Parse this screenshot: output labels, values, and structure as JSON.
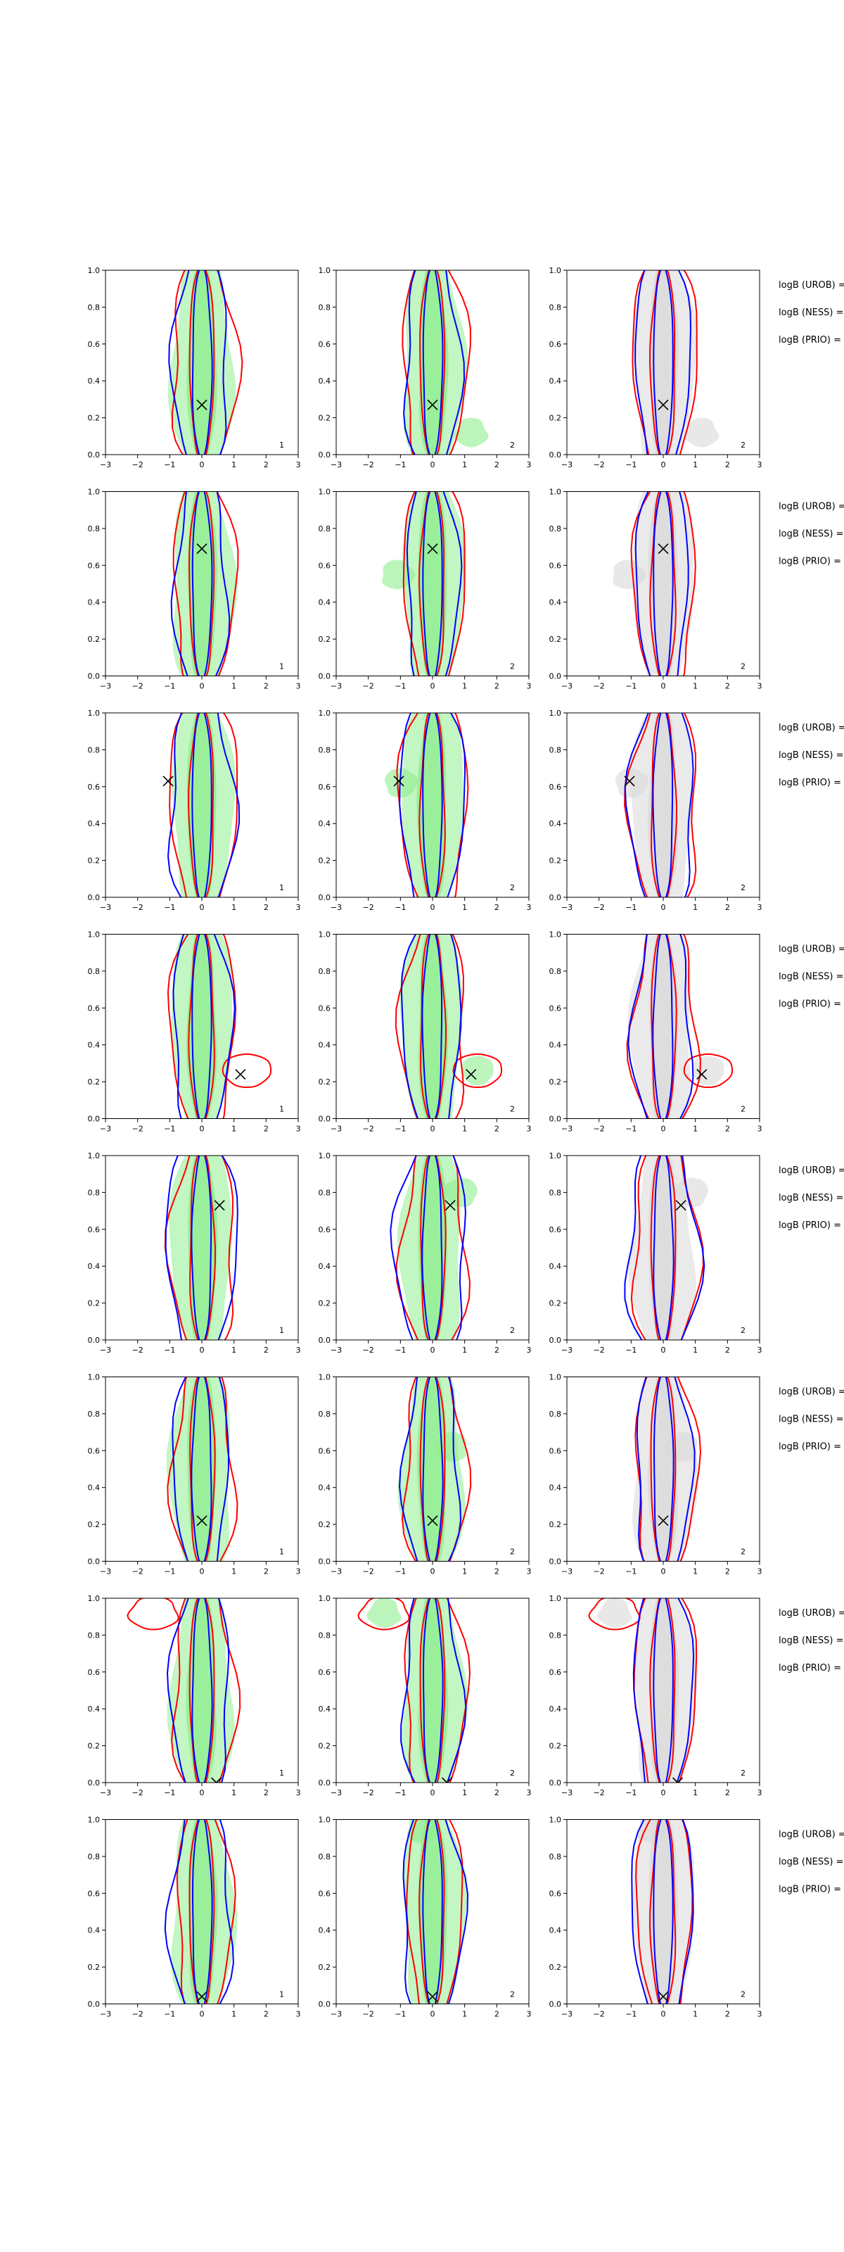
{
  "colors": {
    "fill_green": "#90ee90",
    "fill_gray": "#d9d9d9",
    "contour_red": "#ff0000",
    "contour_blue": "#0000ff",
    "marker": "#000000"
  },
  "chart_data": {
    "type": "contour-grid",
    "layout": {
      "rows": 8,
      "cols": 3
    },
    "xlim": [
      -3,
      3
    ],
    "ylim": [
      0.0,
      1.0
    ],
    "x_ticks": [
      "−3",
      "−2",
      "−1",
      "0",
      "1",
      "2",
      "3"
    ],
    "y_ticks": [
      "0.0",
      "0.2",
      "0.4",
      "0.6",
      "0.8",
      "1.0"
    ],
    "column_fill": [
      "green",
      "green",
      "gray"
    ],
    "panel_labels": [
      "1",
      "2",
      "2"
    ],
    "side_labels": [
      "logB (UROB) =",
      "logB (NESS) =",
      "logB (PRIO) ="
    ],
    "rows": [
      {
        "marker": [
          0.0,
          0.27
        ],
        "wide_red": 1.0,
        "wide_blue": 0.85,
        "extra_blob": [
          1.2,
          0.12
        ]
      },
      {
        "marker": [
          0.0,
          0.69
        ],
        "wide_red": 0.95,
        "wide_blue": 0.8,
        "extra_blob": [
          -1.1,
          0.55
        ]
      },
      {
        "marker": [
          -1.05,
          0.63
        ],
        "wide_red": 1.05,
        "wide_blue": 1.0,
        "extra_blob": [
          -1.0,
          0.62
        ]
      },
      {
        "marker": [
          1.2,
          0.24
        ],
        "wide_red": 1.0,
        "wide_blue": 0.9,
        "extra_blob": [
          1.4,
          0.26
        ]
      },
      {
        "marker": [
          0.55,
          0.73
        ],
        "wide_red": 1.0,
        "wide_blue": 1.1,
        "extra_blob": [
          0.9,
          0.8
        ]
      },
      {
        "marker": [
          0.0,
          0.22
        ],
        "wide_red": 0.95,
        "wide_blue": 0.85,
        "extra_blob": [
          0.6,
          0.62
        ]
      },
      {
        "marker": [
          0.45,
          0.0
        ],
        "wide_red": 0.95,
        "wide_blue": 0.9,
        "extra_blob": [
          -1.5,
          0.92
        ]
      },
      {
        "marker": [
          0.0,
          0.04
        ],
        "wide_red": 0.85,
        "wide_blue": 0.95,
        "extra_blob": [
          -0.3,
          0.95
        ]
      }
    ]
  }
}
